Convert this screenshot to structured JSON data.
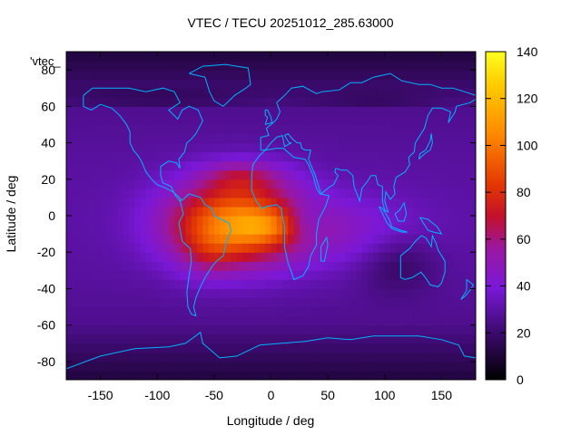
{
  "title": "VTEC / TECU 20251012_285.63000",
  "legend_key": "'vtec_",
  "chart_data": {
    "type": "heatmap",
    "title": "VTEC / TECU 20251012_285.63000",
    "xlabel": "Longitude / deg",
    "ylabel": "Latitude / deg",
    "xlim": [
      -180,
      180
    ],
    "ylim": [
      -90,
      90
    ],
    "xticks": [
      -150,
      -100,
      -50,
      0,
      50,
      100,
      150
    ],
    "yticks": [
      -80,
      -60,
      -40,
      -20,
      0,
      20,
      40,
      60,
      80
    ],
    "colorbar": {
      "min": 0,
      "max": 140,
      "ticks": [
        0,
        20,
        40,
        60,
        80,
        100,
        120,
        140
      ]
    },
    "grid": false,
    "colors": {
      "coastline": "#00b4ff",
      "low": "#000000",
      "mid": "#8000ff",
      "high": "#ffff00"
    }
  }
}
